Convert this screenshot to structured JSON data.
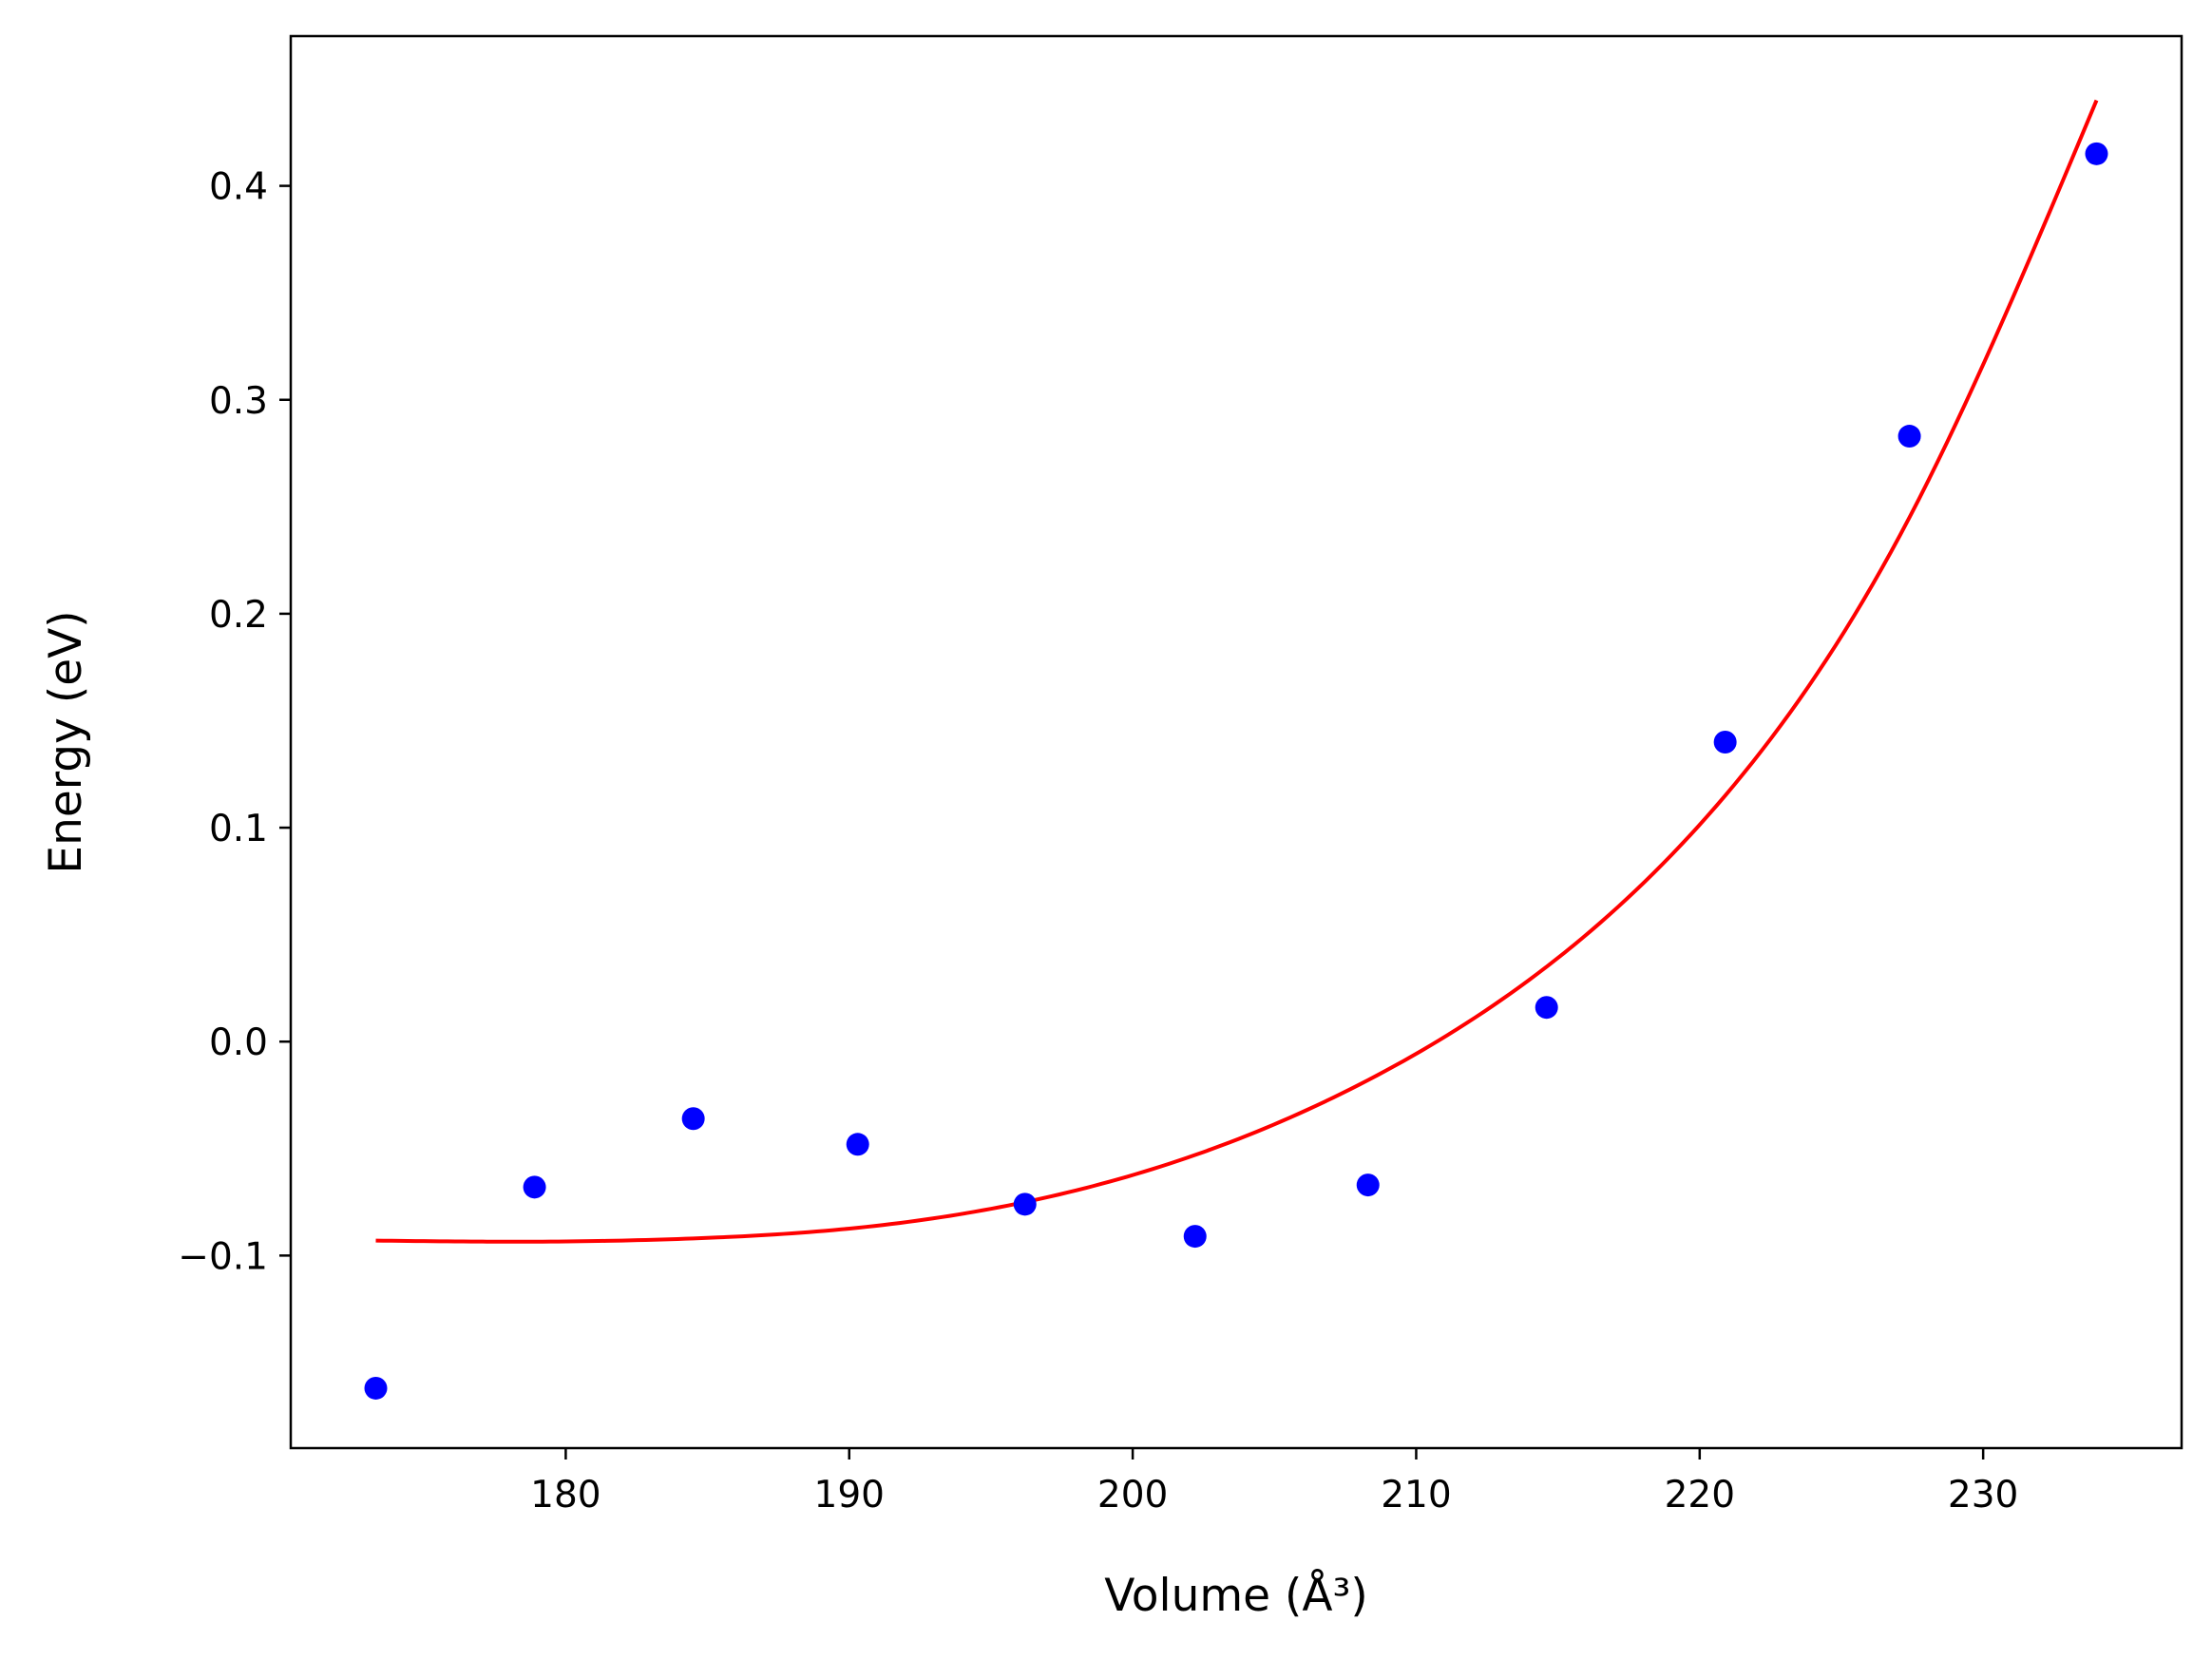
{
  "chart_data": {
    "type": "scatter",
    "xlabel": "Volume (Å³)",
    "ylabel": "Energy (eV)",
    "xlim": [
      170.3,
      237.0
    ],
    "ylim": [
      -0.19,
      0.47
    ],
    "x_ticks": [
      180,
      190,
      200,
      210,
      220,
      230
    ],
    "x_tick_labels": [
      "180",
      "190",
      "200",
      "210",
      "220",
      "230"
    ],
    "y_ticks": [
      -0.1,
      0.0,
      0.1,
      0.2,
      0.3,
      0.4
    ],
    "y_tick_labels": [
      "−0.1",
      "0.0",
      "0.1",
      "0.2",
      "0.3",
      "0.4"
    ],
    "grid": false,
    "series": [
      {
        "kind": "points",
        "color": "#0000ff",
        "x": [
          173.3,
          178.9,
          184.5,
          190.3,
          196.2,
          202.2,
          208.3,
          214.6,
          220.9,
          227.4,
          234.0
        ],
        "y": [
          -0.162,
          -0.068,
          -0.036,
          -0.048,
          -0.076,
          -0.091,
          -0.067,
          0.016,
          0.14,
          0.283,
          0.415
        ]
      },
      {
        "kind": "fit-curve",
        "color": "#ff0000",
        "x": [
          173.3,
          178.9,
          184.5,
          190.3,
          196.2,
          202.2,
          208.3,
          214.6,
          220.9,
          227.4,
          234.0
        ],
        "y": [
          -0.093,
          -0.0935,
          -0.092,
          -0.087,
          -0.075,
          -0.053,
          -0.018,
          0.035,
          0.115,
          0.245,
          0.44
        ]
      }
    ]
  }
}
